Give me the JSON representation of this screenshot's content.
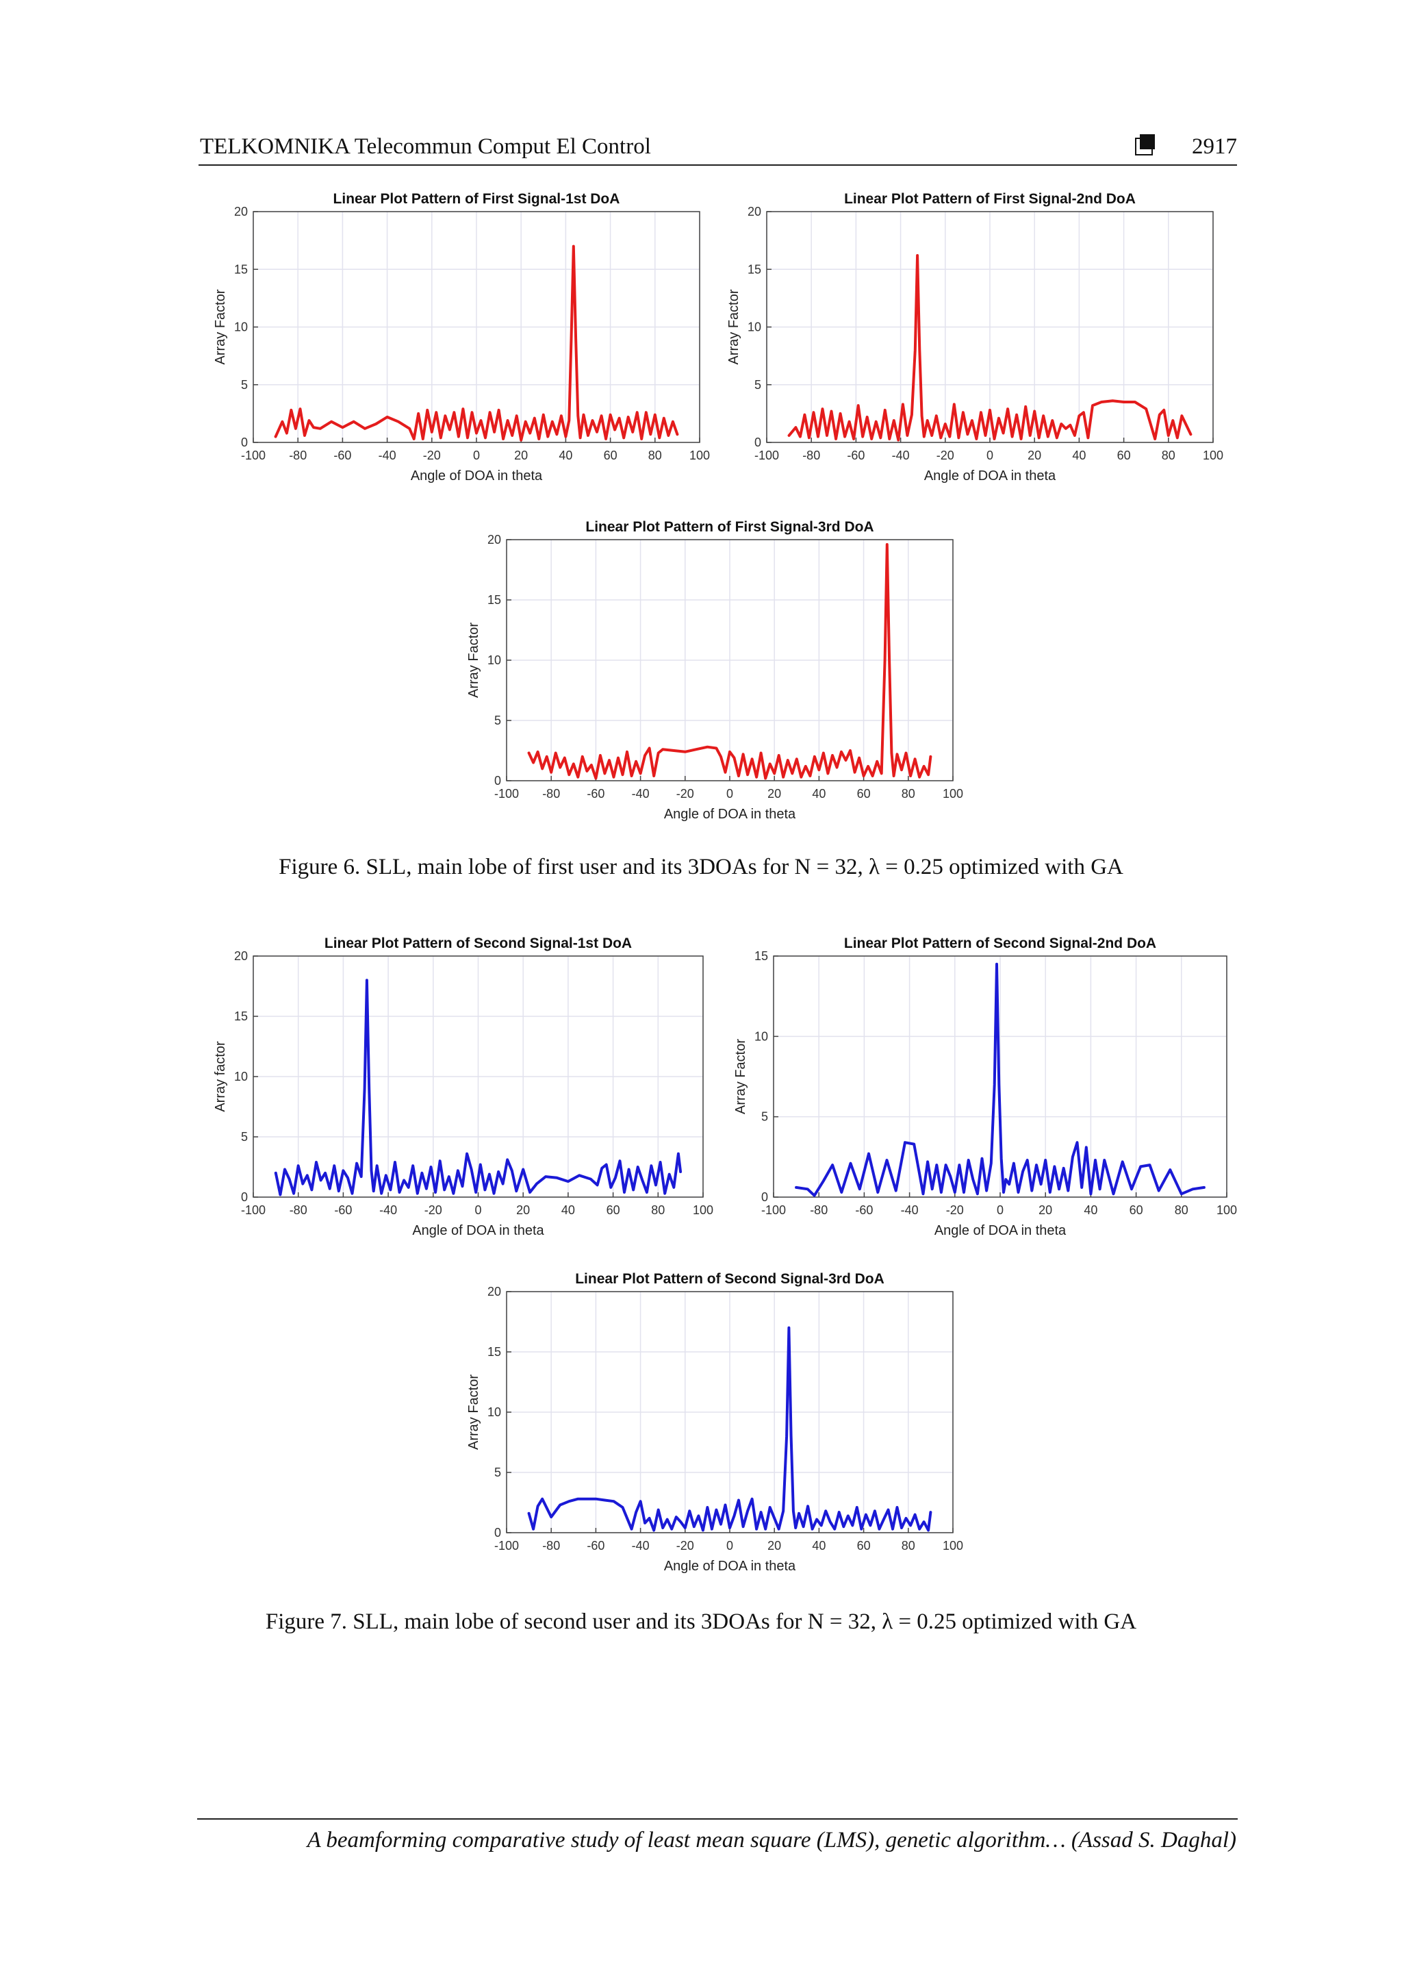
{
  "header": {
    "journal": "TELKOMNIKA Telecommun Comput El Control",
    "page_number": "2917"
  },
  "chart_data": [
    {
      "type": "line",
      "title": "Linear Plot Pattern of First Signal-1st DoA",
      "xlabel": "Angle of DOA in theta",
      "ylabel": "Array Factor",
      "xlim": [
        -100,
        100
      ],
      "ylim": [
        0,
        20
      ],
      "xticks": [
        -100,
        -80,
        -60,
        -40,
        -20,
        0,
        20,
        40,
        60,
        80,
        100
      ],
      "yticks": [
        0,
        5,
        10,
        15,
        20
      ],
      "grid": true,
      "color": "#e41c1c",
      "x": [
        -90,
        -87,
        -85,
        -83,
        -81,
        -79,
        -77,
        -75,
        -73,
        -70,
        -65,
        -60,
        -55,
        -50,
        -45,
        -40,
        -35,
        -30,
        -28,
        -26,
        -24,
        -22,
        -20,
        -18,
        -16,
        -14,
        -12,
        -10,
        -8,
        -6,
        -4,
        -2,
        0,
        2,
        4,
        6,
        8,
        10,
        12,
        14,
        16,
        18,
        20,
        22,
        24,
        26,
        28,
        30,
        32,
        34,
        36,
        38,
        40,
        41.5,
        42.5,
        43.5,
        44.5,
        45.5,
        46.5,
        48,
        50,
        52,
        54,
        56,
        58,
        60,
        62,
        64,
        66,
        68,
        70,
        72,
        74,
        76,
        78,
        80,
        82,
        84,
        86,
        88,
        90
      ],
      "y": [
        0.5,
        1.8,
        0.8,
        2.8,
        1.2,
        2.9,
        0.6,
        1.9,
        1.3,
        1.2,
        1.8,
        1.3,
        1.8,
        1.2,
        1.6,
        2.2,
        1.8,
        1.2,
        0.3,
        2.5,
        0.3,
        2.8,
        0.9,
        2.6,
        0.4,
        2.3,
        1.1,
        2.6,
        0.5,
        2.9,
        0.4,
        2.6,
        0.8,
        1.9,
        0.4,
        2.6,
        0.9,
        2.8,
        0.3,
        1.9,
        0.6,
        2.3,
        0.2,
        1.8,
        0.8,
        2.1,
        0.3,
        2.4,
        0.5,
        1.8,
        0.7,
        2.3,
        0.5,
        1.9,
        9.0,
        17.0,
        9.0,
        2.3,
        0.4,
        2.4,
        0.6,
        1.9,
        0.9,
        2.3,
        0.3,
        2.4,
        1.1,
        2.1,
        0.4,
        2.2,
        0.9,
        2.6,
        0.3,
        2.6,
        0.7,
        2.4,
        0.4,
        2.1,
        0.6,
        1.8,
        0.7
      ]
    },
    {
      "type": "line",
      "title": "Linear Plot Pattern of First Signal-2nd DoA",
      "xlabel": "Angle of DOA in theta",
      "ylabel": "Array Factor",
      "xlim": [
        -100,
        100
      ],
      "ylim": [
        0,
        20
      ],
      "xticks": [
        -100,
        -80,
        -60,
        -40,
        -20,
        0,
        20,
        40,
        60,
        80,
        100
      ],
      "yticks": [
        0,
        5,
        10,
        15,
        20
      ],
      "grid": true,
      "color": "#e41c1c",
      "x": [
        -90,
        -87,
        -85,
        -83,
        -81,
        -79,
        -77,
        -75,
        -73,
        -71,
        -69,
        -67,
        -65,
        -63,
        -61,
        -59,
        -57,
        -55,
        -53,
        -51,
        -49,
        -47,
        -45,
        -43,
        -41,
        -39,
        -37,
        -35,
        -33.5,
        -32.5,
        -31.5,
        -30.5,
        -29.5,
        -28,
        -26,
        -24,
        -22,
        -20,
        -18,
        -16,
        -14,
        -12,
        -10,
        -8,
        -6,
        -4,
        -2,
        0,
        2,
        4,
        6,
        8,
        10,
        12,
        14,
        16,
        18,
        20,
        22,
        24,
        26,
        28,
        30,
        32,
        34,
        36,
        38,
        40,
        42,
        44,
        46,
        50,
        55,
        60,
        65,
        70,
        74,
        76,
        78,
        80,
        82,
        84,
        86,
        88,
        90
      ],
      "y": [
        0.6,
        1.3,
        0.5,
        2.4,
        0.4,
        2.6,
        0.5,
        2.9,
        0.6,
        2.7,
        0.3,
        2.5,
        0.5,
        1.8,
        0.3,
        3.2,
        0.5,
        2.2,
        0.3,
        1.8,
        0.4,
        2.8,
        0.3,
        1.9,
        0.2,
        3.3,
        0.6,
        2.4,
        8.0,
        16.2,
        8.0,
        2.3,
        0.5,
        1.9,
        0.6,
        2.3,
        0.4,
        1.6,
        0.5,
        3.3,
        0.4,
        2.6,
        0.7,
        1.9,
        0.3,
        2.6,
        0.6,
        2.8,
        0.3,
        2.1,
        0.8,
        2.9,
        0.5,
        2.4,
        0.3,
        3.1,
        0.6,
        2.7,
        0.4,
        2.3,
        0.5,
        1.9,
        0.4,
        1.6,
        1.2,
        1.5,
        0.6,
        2.3,
        2.6,
        0.4,
        3.2,
        3.5,
        3.6,
        3.5,
        3.5,
        2.9,
        0.3,
        2.4,
        2.8,
        0.6,
        1.9,
        0.4,
        2.3,
        1.5,
        0.7
      ]
    },
    {
      "type": "line",
      "title": "Linear Plot Pattern of First Signal-3rd DoA",
      "xlabel": "Angle of DOA in theta",
      "ylabel": "Array Factor",
      "xlim": [
        -100,
        100
      ],
      "ylim": [
        0,
        20
      ],
      "xticks": [
        -100,
        -80,
        -60,
        -40,
        -20,
        0,
        20,
        40,
        60,
        80,
        100
      ],
      "yticks": [
        0,
        5,
        10,
        15,
        20
      ],
      "grid": true,
      "color": "#e41c1c",
      "x": [
        -90,
        -88,
        -86,
        -84,
        -82,
        -80,
        -78,
        -76,
        -74,
        -72,
        -70,
        -68,
        -66,
        -64,
        -62,
        -60,
        -58,
        -56,
        -54,
        -52,
        -50,
        -48,
        -46,
        -44,
        -42,
        -40,
        -38,
        -36,
        -34,
        -32,
        -30,
        -25,
        -20,
        -15,
        -10,
        -6,
        -4,
        -2,
        0,
        2,
        4,
        6,
        8,
        10,
        12,
        14,
        16,
        18,
        20,
        22,
        24,
        26,
        28,
        30,
        32,
        34,
        36,
        38,
        40,
        42,
        44,
        46,
        48,
        50,
        52,
        54,
        56,
        58,
        60,
        62,
        64,
        66,
        68,
        69.5,
        70.5,
        71.5,
        72.5,
        73.5,
        75,
        77,
        79,
        81,
        83,
        85,
        87,
        89,
        90
      ],
      "y": [
        2.3,
        1.5,
        2.4,
        1.0,
        2.0,
        0.7,
        2.3,
        1.1,
        1.9,
        0.5,
        1.4,
        0.3,
        2.0,
        0.8,
        1.3,
        0.2,
        2.1,
        0.6,
        1.7,
        0.3,
        1.9,
        0.5,
        2.4,
        0.4,
        1.6,
        0.6,
        2.1,
        2.7,
        0.4,
        2.3,
        2.6,
        2.5,
        2.4,
        2.6,
        2.8,
        2.7,
        2.0,
        0.7,
        2.4,
        1.9,
        0.4,
        2.2,
        0.5,
        1.8,
        0.3,
        2.3,
        0.2,
        1.4,
        0.6,
        2.1,
        0.3,
        1.7,
        0.6,
        1.8,
        0.3,
        1.2,
        0.4,
        2.0,
        0.9,
        2.3,
        0.6,
        2.1,
        1.1,
        2.4,
        1.7,
        2.5,
        0.7,
        1.9,
        0.4,
        1.2,
        0.4,
        1.6,
        0.6,
        10.0,
        19.6,
        10.0,
        2.3,
        0.4,
        2.2,
        0.9,
        2.3,
        0.4,
        1.8,
        0.3,
        1.2,
        0.5,
        2.0
      ]
    },
    {
      "type": "line",
      "title": "Linear Plot Pattern of Second Signal-1st DoA",
      "xlabel": "Angle of DOA in theta",
      "ylabel": "Array factor",
      "xlim": [
        -100,
        100
      ],
      "ylim": [
        0,
        20
      ],
      "xticks": [
        -100,
        -80,
        -60,
        -40,
        -20,
        0,
        20,
        40,
        60,
        80,
        100
      ],
      "yticks": [
        0,
        5,
        10,
        15,
        20
      ],
      "grid": true,
      "color": "#1a1ad6",
      "x": [
        -90,
        -88,
        -86,
        -84,
        -82,
        -80,
        -78,
        -76,
        -74,
        -72,
        -70,
        -68,
        -66,
        -64,
        -62,
        -60,
        -58,
        -56,
        -54,
        -52,
        -50.5,
        -49.5,
        -48.5,
        -47.5,
        -46.5,
        -45,
        -43,
        -41,
        -39,
        -37,
        -35,
        -33,
        -31,
        -29,
        -27,
        -25,
        -23,
        -21,
        -19,
        -17,
        -15,
        -13,
        -11,
        -9,
        -7,
        -5,
        -3,
        -1,
        1,
        3,
        5,
        7,
        9,
        11,
        13,
        15,
        17,
        20,
        23,
        26,
        30,
        35,
        40,
        45,
        50,
        53,
        55,
        57,
        59,
        61,
        63,
        65,
        67,
        69,
        71,
        73,
        75,
        77,
        79,
        81,
        83,
        85,
        87,
        89,
        90
      ],
      "y": [
        2.0,
        0.2,
        2.3,
        1.5,
        0.3,
        2.6,
        1.1,
        1.8,
        0.6,
        2.9,
        1.4,
        2.0,
        0.7,
        2.6,
        0.5,
        2.2,
        1.6,
        0.3,
        2.8,
        1.7,
        9.0,
        18.0,
        9.0,
        2.2,
        0.5,
        2.6,
        0.3,
        1.8,
        0.6,
        2.9,
        0.4,
        1.4,
        0.8,
        2.6,
        0.3,
        2.0,
        0.7,
        2.5,
        0.4,
        3.0,
        0.6,
        1.7,
        0.3,
        2.2,
        0.9,
        3.6,
        2.3,
        0.4,
        2.7,
        0.6,
        1.9,
        0.3,
        2.1,
        1.1,
        3.1,
        2.2,
        0.5,
        2.3,
        0.4,
        1.1,
        1.7,
        1.6,
        1.3,
        1.8,
        1.5,
        1.0,
        2.4,
        2.7,
        0.8,
        1.6,
        3.0,
        0.4,
        2.3,
        0.6,
        2.5,
        1.4,
        0.4,
        2.6,
        1.0,
        2.9,
        0.3,
        1.9,
        0.8,
        3.6,
        2.1
      ]
    },
    {
      "type": "line",
      "title": "Linear Plot Pattern of Second Signal-2nd DoA",
      "xlabel": "Angle of DOA in theta",
      "ylabel": "Array Factor",
      "xlim": [
        -100,
        100
      ],
      "ylim": [
        0,
        15
      ],
      "xticks": [
        -100,
        -80,
        -60,
        -40,
        -20,
        0,
        20,
        40,
        60,
        80,
        100
      ],
      "yticks": [
        0,
        5,
        10,
        15
      ],
      "grid": true,
      "color": "#1a1ad6",
      "x": [
        -90,
        -85,
        -82,
        -78,
        -74,
        -70,
        -66,
        -62,
        -58,
        -54,
        -50,
        -46,
        -42,
        -38,
        -34,
        -32,
        -30,
        -28,
        -26,
        -24,
        -22,
        -20,
        -18,
        -16,
        -14,
        -12,
        -10,
        -8,
        -6,
        -4,
        -2.5,
        -1.5,
        -0.5,
        0.5,
        1.5,
        2.5,
        4,
        6,
        8,
        10,
        12,
        14,
        16,
        18,
        20,
        22,
        24,
        26,
        28,
        30,
        32,
        34,
        36,
        38,
        40,
        42,
        44,
        46,
        50,
        54,
        58,
        62,
        66,
        70,
        75,
        80,
        85,
        90
      ],
      "y": [
        0.6,
        0.5,
        0.1,
        1.0,
        2.0,
        0.3,
        2.1,
        0.5,
        2.7,
        0.3,
        2.3,
        0.4,
        3.4,
        3.3,
        0.2,
        2.2,
        0.5,
        2.0,
        0.3,
        2.0,
        1.3,
        0.3,
        2.0,
        0.3,
        2.3,
        1.1,
        0.2,
        2.4,
        0.4,
        2.1,
        7.0,
        14.5,
        7.0,
        2.4,
        0.3,
        1.1,
        0.8,
        2.1,
        0.3,
        1.6,
        2.3,
        0.4,
        2.0,
        0.8,
        2.3,
        0.3,
        1.9,
        0.5,
        1.8,
        0.4,
        2.5,
        3.4,
        0.6,
        3.1,
        0.2,
        2.3,
        0.5,
        2.3,
        0.2,
        2.2,
        0.5,
        1.9,
        2.0,
        0.4,
        1.7,
        0.2,
        0.5,
        0.6
      ]
    },
    {
      "type": "line",
      "title": "Linear Plot Pattern of Second Signal-3rd DoA",
      "xlabel": "Angle of DOA in theta",
      "ylabel": "Array Factor",
      "xlim": [
        -100,
        100
      ],
      "ylim": [
        0,
        20
      ],
      "xticks": [
        -100,
        -80,
        -60,
        -40,
        -20,
        0,
        20,
        40,
        60,
        80,
        100
      ],
      "yticks": [
        0,
        5,
        10,
        15,
        20
      ],
      "grid": true,
      "color": "#1a1ad6",
      "x": [
        -90,
        -88,
        -86,
        -84,
        -80,
        -76,
        -72,
        -68,
        -64,
        -60,
        -56,
        -52,
        -48,
        -44,
        -42,
        -40,
        -38,
        -36,
        -34,
        -32,
        -30,
        -28,
        -26,
        -24,
        -22,
        -20,
        -18,
        -16,
        -14,
        -12,
        -10,
        -8,
        -6,
        -4,
        -2,
        0,
        2,
        4,
        6,
        8,
        10,
        12,
        14,
        16,
        18,
        20,
        22,
        24,
        25.5,
        26.5,
        27.5,
        28.5,
        29.5,
        31,
        33,
        35,
        37,
        39,
        41,
        43,
        45,
        47,
        49,
        51,
        53,
        55,
        57,
        59,
        61,
        63,
        65,
        67,
        69,
        71,
        73,
        75,
        77,
        79,
        81,
        83,
        85,
        87,
        89,
        90
      ],
      "y": [
        1.6,
        0.3,
        2.2,
        2.8,
        1.3,
        2.3,
        2.6,
        2.8,
        2.8,
        2.8,
        2.7,
        2.6,
        2.1,
        0.3,
        1.7,
        2.6,
        0.8,
        1.2,
        0.2,
        1.9,
        0.4,
        1.1,
        0.3,
        1.3,
        0.9,
        0.4,
        1.8,
        0.5,
        1.4,
        0.2,
        2.1,
        0.3,
        1.9,
        0.7,
        2.3,
        0.4,
        1.4,
        2.7,
        0.5,
        1.8,
        2.8,
        0.3,
        1.7,
        0.3,
        2.1,
        1.2,
        0.3,
        1.8,
        8.0,
        17.0,
        8.0,
        1.8,
        0.4,
        1.6,
        0.5,
        2.2,
        0.3,
        1.1,
        0.6,
        1.8,
        0.9,
        0.3,
        1.7,
        0.5,
        1.4,
        0.6,
        2.1,
        0.3,
        1.5,
        0.6,
        1.8,
        0.3,
        1.1,
        1.9,
        0.3,
        2.1,
        0.4,
        1.2,
        0.6,
        1.5,
        0.3,
        0.9,
        0.2,
        1.7
      ]
    }
  ],
  "captions": {
    "figure6": "Figure 6. SLL, main lobe of first user and its 3DOAs for N = 32, λ = 0.25 optimized with GA",
    "figure7": "Figure 7. SLL, main lobe of second user and its 3DOAs for N = 32, λ = 0.25 optimized with GA"
  },
  "footer": {
    "text": "A beamforming comparative study of least mean square (LMS), genetic algorithm… (Assad S. Daghal)"
  }
}
